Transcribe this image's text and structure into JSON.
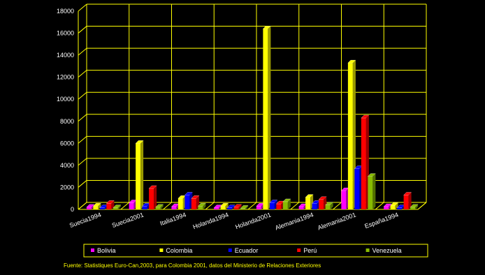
{
  "chart_data": {
    "type": "bar",
    "categories": [
      "Suecia1994",
      "Suecia2001",
      "Italia1994",
      "Holanda1994",
      "Holanda2001",
      "Alemania1994",
      "Alemania2001",
      "España1994"
    ],
    "series": [
      {
        "name": "Bolivia",
        "color": "#ff00ff",
        "values": [
          200,
          600,
          250,
          150,
          300,
          250,
          1700,
          250
        ]
      },
      {
        "name": "Colombia",
        "color": "#ffff00",
        "values": [
          300,
          6000,
          1000,
          300,
          16400,
          1100,
          13300,
          350
        ]
      },
      {
        "name": "Ecuador",
        "color": "#0000ff",
        "values": [
          150,
          300,
          1300,
          150,
          600,
          550,
          3700,
          150
        ]
      },
      {
        "name": "Perú",
        "color": "#ff0000",
        "values": [
          550,
          1900,
          1000,
          200,
          500,
          900,
          8300,
          1300
        ]
      },
      {
        "name": "Venezuela",
        "color": "#88bb00",
        "values": [
          150,
          200,
          300,
          100,
          700,
          400,
          3000,
          200
        ]
      }
    ],
    "ylim": [
      0,
      18000
    ],
    "yticks": [
      0,
      2000,
      4000,
      6000,
      8000,
      10000,
      12000,
      14000,
      16000,
      18000
    ],
    "grid": true,
    "legend_position": "bottom",
    "source": "Fuente: Statistiques Euro-Can,2003, para Colombia 2001, datos del Ministerio de Relaciones Exteriores",
    "axis_color": "#ffff00"
  }
}
